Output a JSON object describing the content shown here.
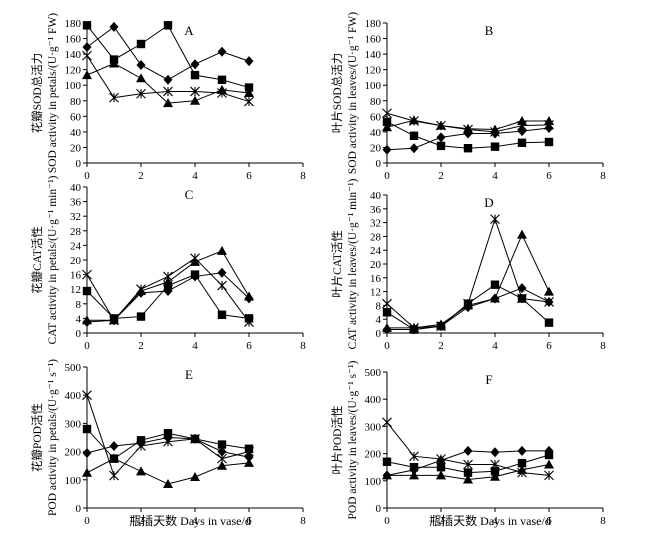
{
  "figure": {
    "x_label": "瓶插天数 Days in vase/d"
  },
  "chart_data": [
    {
      "type": "line",
      "letter": "A",
      "ylabel_cn": "花瓣SOD总活力",
      "ylabel_en": "SOD activity in petals/(U·g⁻¹ FW)",
      "ylim": [
        0,
        180
      ],
      "yticks": [
        0,
        20,
        40,
        60,
        80,
        100,
        120,
        140,
        160,
        180
      ],
      "xlim": [
        0,
        8
      ],
      "xticks": [
        0,
        2,
        4,
        6,
        8
      ],
      "series": [
        {
          "name": "square",
          "marker": "square",
          "x": [
            0,
            1,
            2,
            3,
            4,
            5,
            6
          ],
          "y": [
            177,
            133,
            153,
            177,
            113,
            107,
            97
          ]
        },
        {
          "name": "diamond",
          "marker": "diamond",
          "x": [
            0,
            1,
            2,
            3,
            4,
            5,
            6
          ],
          "y": [
            149,
            175,
            126,
            107,
            127,
            143,
            131
          ]
        },
        {
          "name": "triangle",
          "marker": "triangle",
          "x": [
            0,
            1,
            2,
            3,
            4,
            5,
            6
          ],
          "y": [
            113,
            128,
            109,
            77,
            80,
            94,
            90
          ]
        },
        {
          "name": "star",
          "marker": "star",
          "x": [
            0,
            1,
            2,
            3,
            4,
            5,
            6
          ],
          "y": [
            138,
            84,
            89,
            92,
            92,
            90,
            79
          ]
        }
      ]
    },
    {
      "type": "line",
      "letter": "B",
      "ylabel_cn": "叶片SOD总活力",
      "ylabel_en": "SOD activity in leaves/(U·g⁻¹ FW)",
      "ylim": [
        0,
        180
      ],
      "yticks": [
        0,
        20,
        40,
        60,
        80,
        100,
        120,
        140,
        160,
        180
      ],
      "xlim": [
        0,
        8
      ],
      "xticks": [
        0,
        2,
        4,
        6,
        8
      ],
      "series": [
        {
          "name": "square",
          "marker": "square",
          "x": [
            0,
            1,
            2,
            3,
            4,
            5,
            6
          ],
          "y": [
            53,
            35,
            22,
            19,
            21,
            26,
            27
          ]
        },
        {
          "name": "diamond",
          "marker": "diamond",
          "x": [
            0,
            1,
            2,
            3,
            4,
            5,
            6
          ],
          "y": [
            17,
            19,
            33,
            38,
            38,
            41,
            45
          ]
        },
        {
          "name": "triangle",
          "marker": "triangle",
          "x": [
            0,
            1,
            2,
            3,
            4,
            5,
            6
          ],
          "y": [
            46,
            55,
            48,
            44,
            43,
            54,
            54
          ]
        },
        {
          "name": "star",
          "marker": "star",
          "x": [
            0,
            1,
            2,
            3,
            4,
            5,
            6
          ],
          "y": [
            64,
            54,
            48,
            43,
            40,
            48,
            49
          ]
        }
      ]
    },
    {
      "type": "line",
      "letter": "C",
      "ylabel_cn": "花瓣CAT活性",
      "ylabel_en": "CAT activity in petals/(U·g⁻¹ min⁻¹)",
      "ylim": [
        0,
        40
      ],
      "yticks": [
        0,
        4,
        8,
        12,
        16,
        20,
        24,
        28,
        32,
        36,
        40
      ],
      "xlim": [
        0,
        8
      ],
      "xticks": [
        0,
        2,
        4,
        6,
        8
      ],
      "series": [
        {
          "name": "square",
          "marker": "square",
          "x": [
            0,
            1,
            2,
            3,
            4,
            5,
            6
          ],
          "y": [
            11.5,
            4,
            4.5,
            13,
            16,
            5,
            4
          ]
        },
        {
          "name": "diamond",
          "marker": "diamond",
          "x": [
            0,
            1,
            2,
            3,
            4,
            5,
            6
          ],
          "y": [
            3,
            3.5,
            11,
            11.5,
            15.5,
            16.5,
            9.5
          ]
        },
        {
          "name": "triangle",
          "marker": "triangle",
          "x": [
            0,
            1,
            2,
            3,
            4,
            5,
            6
          ],
          "y": [
            3.5,
            3.5,
            11.5,
            14,
            19.5,
            22.5,
            10
          ]
        },
        {
          "name": "star",
          "marker": "star",
          "x": [
            0,
            1,
            2,
            3,
            4,
            5,
            6
          ],
          "y": [
            16,
            3.5,
            12,
            15.5,
            20.5,
            13,
            3
          ]
        }
      ]
    },
    {
      "type": "line",
      "letter": "D",
      "ylabel_cn": "叶片CAT活性",
      "ylabel_en": "CAT activity in leaves/(U·g⁻¹ min⁻¹)",
      "ylim": [
        0,
        40
      ],
      "yticks": [
        0,
        4,
        8,
        12,
        16,
        20,
        24,
        28,
        32,
        36,
        40
      ],
      "xlim": [
        0,
        8
      ],
      "xticks": [
        0,
        2,
        4,
        6,
        8
      ],
      "series": [
        {
          "name": "square",
          "marker": "square",
          "x": [
            0,
            1,
            2,
            3,
            4,
            5,
            6
          ],
          "y": [
            6,
            1,
            2,
            8.5,
            14,
            10,
            3
          ]
        },
        {
          "name": "diamond",
          "marker": "diamond",
          "x": [
            0,
            1,
            2,
            3,
            4,
            5,
            6
          ],
          "y": [
            1,
            1,
            2,
            7.5,
            10,
            13,
            9
          ]
        },
        {
          "name": "triangle",
          "marker": "triangle",
          "x": [
            0,
            1,
            2,
            3,
            4,
            5,
            6
          ],
          "y": [
            1.5,
            1.5,
            2.5,
            8,
            10,
            28.5,
            12
          ]
        },
        {
          "name": "star",
          "marker": "star",
          "x": [
            0,
            1,
            2,
            3,
            4,
            5,
            6
          ],
          "y": [
            8.5,
            1.5,
            2,
            8.5,
            33,
            10,
            9
          ]
        }
      ]
    },
    {
      "type": "line",
      "letter": "E",
      "ylabel_cn": "花瓣POD活性",
      "ylabel_en": "POD activity in petals/(U·g⁻¹ s⁻¹)",
      "ylim": [
        0,
        500
      ],
      "yticks": [
        0,
        100,
        200,
        300,
        400,
        500
      ],
      "xlim": [
        0,
        8
      ],
      "xticks": [
        0,
        2,
        4,
        6,
        8
      ],
      "series": [
        {
          "name": "square",
          "marker": "square",
          "x": [
            0,
            1,
            2,
            3,
            4,
            5,
            6
          ],
          "y": [
            280,
            175,
            240,
            265,
            245,
            225,
            210
          ]
        },
        {
          "name": "diamond",
          "marker": "diamond",
          "x": [
            0,
            1,
            2,
            3,
            4,
            5,
            6
          ],
          "y": [
            195,
            220,
            230,
            250,
            245,
            200,
            180
          ]
        },
        {
          "name": "triangle",
          "marker": "triangle",
          "x": [
            0,
            1,
            2,
            3,
            4,
            5,
            6
          ],
          "y": [
            125,
            175,
            130,
            85,
            110,
            150,
            160
          ]
        },
        {
          "name": "star",
          "marker": "star",
          "x": [
            0,
            1,
            2,
            3,
            4,
            5,
            6
          ],
          "y": [
            400,
            115,
            220,
            235,
            245,
            175,
            200
          ]
        }
      ]
    },
    {
      "type": "line",
      "letter": "F",
      "ylabel_cn": "叶片POD活性",
      "ylabel_en": "POD activity in leaves/(U·g⁻¹ s⁻¹)",
      "ylim": [
        0,
        500
      ],
      "yticks": [
        0,
        100,
        200,
        300,
        400,
        500
      ],
      "xlim": [
        0,
        8
      ],
      "xticks": [
        0,
        2,
        4,
        6,
        8
      ],
      "series": [
        {
          "name": "square",
          "marker": "square",
          "x": [
            0,
            1,
            2,
            3,
            4,
            5,
            6
          ],
          "y": [
            170,
            150,
            150,
            130,
            135,
            165,
            195
          ]
        },
        {
          "name": "diamond",
          "marker": "diamond",
          "x": [
            0,
            1,
            2,
            3,
            4,
            5,
            6
          ],
          "y": [
            120,
            140,
            175,
            210,
            205,
            210,
            210
          ]
        },
        {
          "name": "triangle",
          "marker": "triangle",
          "x": [
            0,
            1,
            2,
            3,
            4,
            5,
            6
          ],
          "y": [
            120,
            120,
            120,
            105,
            115,
            140,
            160
          ]
        },
        {
          "name": "star",
          "marker": "star",
          "x": [
            0,
            1,
            2,
            3,
            4,
            5,
            6
          ],
          "y": [
            315,
            190,
            180,
            160,
            160,
            130,
            120
          ]
        }
      ]
    }
  ]
}
